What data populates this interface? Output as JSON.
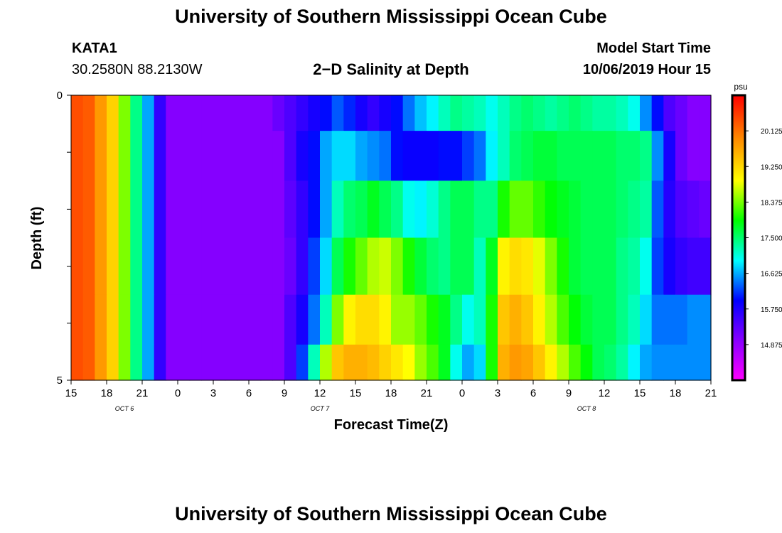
{
  "page": {
    "title": "University of Southern Mississippi Ocean Cube",
    "footer_title": "University of Southern Mississippi Ocean Cube",
    "station_name": "KATA1",
    "station_coords": "30.2580N 88.2130W",
    "model_start_label": "Model Start Time",
    "model_start_value": "10/06/2019 Hour 15"
  },
  "chart_data": {
    "type": "heatmap",
    "title": "2−D Salinity at Depth",
    "xlabel": "Forecast Time(Z)",
    "ylabel": "Depth (ft)",
    "x_tick_labels": [
      "15",
      "18",
      "21",
      "0",
      "3",
      "6",
      "9",
      "12",
      "15",
      "18",
      "21",
      "0",
      "3",
      "6",
      "9",
      "12",
      "15",
      "18",
      "21"
    ],
    "date_labels": [
      {
        "label": "OCT 6",
        "hour_index": 4.5
      },
      {
        "label": "OCT 7",
        "hour_index": 21
      },
      {
        "label": "OCT 8",
        "hour_index": 43.5
      }
    ],
    "y_tick_labels": [
      "0",
      "5"
    ],
    "y_range": [
      0,
      5
    ],
    "x_range_hours": [
      0,
      54
    ],
    "colorbar": {
      "unit": "psu",
      "min": 14.0,
      "max": 21.0,
      "tick_labels": [
        "20.125",
        "19.250",
        "18.375",
        "17.500",
        "16.625",
        "15.750",
        "14.875"
      ],
      "tick_values": [
        20.125,
        19.25,
        18.375,
        17.5,
        16.625,
        15.75,
        14.875
      ]
    },
    "layer_depths_ft": [
      0.25,
      1.0,
      2.0,
      3.0,
      4.0,
      4.75
    ],
    "salinity_psu": [
      [
        20.4,
        20.3,
        19.8,
        19.3,
        18.4,
        17.4,
        16.6,
        15.6,
        15.0,
        15.0,
        15.0,
        15.0,
        15.0,
        15.0,
        15.0,
        15.0,
        15.0,
        15.2,
        15.4,
        15.6,
        15.8,
        16.0,
        16.3,
        16.1,
        15.8,
        15.6,
        15.8,
        16.0,
        16.4,
        16.7,
        16.9,
        17.2,
        17.4,
        17.3,
        17.2,
        17.0,
        17.2,
        17.4,
        17.5,
        17.4,
        17.3,
        17.4,
        17.5,
        17.4,
        17.3,
        17.3,
        17.2,
        17.0,
        16.5,
        16.0,
        15.4,
        15.2,
        15.0,
        15.0
      ],
      [
        20.4,
        20.3,
        19.8,
        19.3,
        18.4,
        17.4,
        16.6,
        15.6,
        15.0,
        15.0,
        15.0,
        15.0,
        15.0,
        15.0,
        15.0,
        15.0,
        15.0,
        15.0,
        15.4,
        15.8,
        16.0,
        16.6,
        16.8,
        16.8,
        16.6,
        16.5,
        16.4,
        16.0,
        15.9,
        15.9,
        15.9,
        16.0,
        16.0,
        16.2,
        16.4,
        16.9,
        17.2,
        17.5,
        17.6,
        17.7,
        17.7,
        17.6,
        17.6,
        17.6,
        17.6,
        17.6,
        17.5,
        17.5,
        17.4,
        16.5,
        15.8,
        15.2,
        15.0,
        15.0
      ],
      [
        20.4,
        20.3,
        19.8,
        19.3,
        18.4,
        17.4,
        16.6,
        15.6,
        15.0,
        15.0,
        15.0,
        15.0,
        15.0,
        15.0,
        15.0,
        15.0,
        15.0,
        15.0,
        15.3,
        15.6,
        16.0,
        16.6,
        17.2,
        17.5,
        17.6,
        17.8,
        17.6,
        17.4,
        17.0,
        16.9,
        17.1,
        17.4,
        17.6,
        17.6,
        17.4,
        17.4,
        18.0,
        18.3,
        18.3,
        18.1,
        17.9,
        17.8,
        17.7,
        17.6,
        17.6,
        17.6,
        17.5,
        17.4,
        17.3,
        16.3,
        15.7,
        15.4,
        15.3,
        15.2
      ],
      [
        20.4,
        20.3,
        19.8,
        19.3,
        18.4,
        17.4,
        16.6,
        15.6,
        15.0,
        15.0,
        15.0,
        15.0,
        15.0,
        15.0,
        15.0,
        15.0,
        15.0,
        15.0,
        15.2,
        15.6,
        16.2,
        16.8,
        17.6,
        18.0,
        18.3,
        18.6,
        18.7,
        18.4,
        18.0,
        17.7,
        17.5,
        17.4,
        17.6,
        17.6,
        17.2,
        17.8,
        19.0,
        19.2,
        19.1,
        18.8,
        18.4,
        18.0,
        17.7,
        17.6,
        17.6,
        17.6,
        17.4,
        17.3,
        17.0,
        16.2,
        15.8,
        15.6,
        15.5,
        15.5
      ],
      [
        20.4,
        20.3,
        19.8,
        19.3,
        18.4,
        17.4,
        16.6,
        15.6,
        15.0,
        15.0,
        15.0,
        15.0,
        15.0,
        15.0,
        15.0,
        15.0,
        15.0,
        15.0,
        15.4,
        15.8,
        16.4,
        17.2,
        18.4,
        19.0,
        19.2,
        19.2,
        19.0,
        18.5,
        18.5,
        18.3,
        18.0,
        17.8,
        17.4,
        17.0,
        17.2,
        18.0,
        19.4,
        19.6,
        19.4,
        19.0,
        18.6,
        18.2,
        17.9,
        17.7,
        17.6,
        17.6,
        17.4,
        17.2,
        16.8,
        16.4,
        16.4,
        16.4,
        16.5,
        16.5
      ],
      [
        20.4,
        20.3,
        19.8,
        19.3,
        18.4,
        17.4,
        16.6,
        15.6,
        15.0,
        15.0,
        15.0,
        15.0,
        15.0,
        15.0,
        15.0,
        15.0,
        15.0,
        15.0,
        15.4,
        16.2,
        17.2,
        18.6,
        19.4,
        19.6,
        19.6,
        19.5,
        19.3,
        19.1,
        18.9,
        18.5,
        18.2,
        17.8,
        17.0,
        16.6,
        16.8,
        18.0,
        19.6,
        19.8,
        19.7,
        19.4,
        19.0,
        18.6,
        18.2,
        17.9,
        17.6,
        17.5,
        17.3,
        16.9,
        16.6,
        16.5,
        16.5,
        16.5,
        16.5,
        16.5
      ]
    ]
  }
}
